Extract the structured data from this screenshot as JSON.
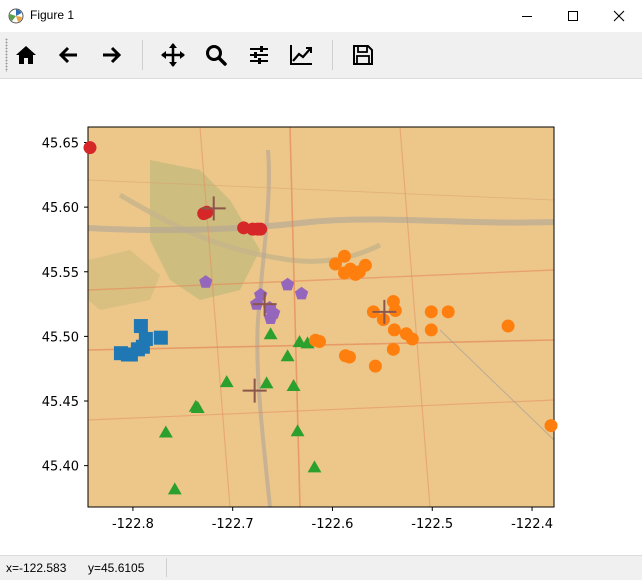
{
  "window": {
    "title": "Figure 1",
    "minimize_icon": "minimize-icon",
    "maximize_icon": "maximize-icon",
    "close_icon": "close-icon"
  },
  "toolbar": {
    "buttons": [
      {
        "name": "home-button",
        "icon": "home-icon"
      },
      {
        "name": "back-button",
        "icon": "arrow-left-icon"
      },
      {
        "name": "forward-button",
        "icon": "arrow-right-icon"
      },
      {
        "name": "pan-button",
        "icon": "move-icon"
      },
      {
        "name": "zoom-button",
        "icon": "magnifier-icon"
      },
      {
        "name": "configure-subplots-button",
        "icon": "sliders-icon"
      },
      {
        "name": "edit-axis-button",
        "icon": "line-chart-icon"
      },
      {
        "name": "save-button",
        "icon": "floppy-disk-icon"
      }
    ]
  },
  "status": {
    "x_readout": "x=-122.583",
    "y_readout": "y=45.6105"
  },
  "chart_data": {
    "type": "scatter",
    "title": "",
    "xlabel": "",
    "ylabel": "",
    "xlim": [
      -122.845,
      -122.378
    ],
    "ylim": [
      45.368,
      45.662
    ],
    "x_ticks": [
      "-122.8",
      "-122.7",
      "-122.6",
      "-122.5",
      "-122.4"
    ],
    "x_tick_values": [
      -122.8,
      -122.7,
      -122.6,
      -122.5,
      -122.4
    ],
    "y_ticks": [
      "45.40",
      "45.45",
      "45.50",
      "45.55",
      "45.60",
      "45.65"
    ],
    "y_tick_values": [
      45.4,
      45.45,
      45.5,
      45.55,
      45.6,
      45.65
    ],
    "background": "basemap street map of Portland, Oregon",
    "series": [
      {
        "marker": "circle",
        "color": "#d62728",
        "points": [
          [
            -122.843,
            45.646
          ],
          [
            -122.729,
            45.595
          ],
          [
            -122.726,
            45.596
          ],
          [
            -122.689,
            45.584
          ],
          [
            -122.68,
            45.583
          ],
          [
            -122.675,
            45.583
          ],
          [
            -122.672,
            45.583
          ]
        ]
      },
      {
        "marker": "square",
        "color": "#1f77b4",
        "points": [
          [
            -122.792,
            45.508
          ],
          [
            -122.787,
            45.498
          ],
          [
            -122.772,
            45.499
          ],
          [
            -122.795,
            45.49
          ],
          [
            -122.79,
            45.492
          ],
          [
            -122.805,
            45.486
          ],
          [
            -122.812,
            45.487
          ],
          [
            -122.802,
            45.486
          ]
        ]
      },
      {
        "marker": "triangle",
        "color": "#2ca02c",
        "points": [
          [
            -122.662,
            45.502
          ],
          [
            -122.633,
            45.496
          ],
          [
            -122.625,
            45.495
          ],
          [
            -122.645,
            45.485
          ],
          [
            -122.706,
            45.465
          ],
          [
            -122.666,
            45.464
          ],
          [
            -122.639,
            45.462
          ],
          [
            -122.737,
            45.446
          ],
          [
            -122.735,
            45.445
          ],
          [
            -122.767,
            45.426
          ],
          [
            -122.635,
            45.427
          ],
          [
            -122.618,
            45.399
          ],
          [
            -122.758,
            45.382
          ]
        ]
      },
      {
        "marker": "pentagon",
        "color": "#9467bd",
        "points": [
          [
            -122.727,
            45.542
          ],
          [
            -122.672,
            45.532
          ],
          [
            -122.645,
            45.54
          ],
          [
            -122.631,
            45.533
          ],
          [
            -122.676,
            45.525
          ],
          [
            -122.663,
            45.522
          ],
          [
            -122.659,
            45.518
          ],
          [
            -122.662,
            45.514
          ]
        ]
      },
      {
        "marker": "circle",
        "color": "#ff7f0e",
        "points": [
          [
            -122.588,
            45.562
          ],
          [
            -122.597,
            45.556
          ],
          [
            -122.567,
            45.555
          ],
          [
            -122.573,
            45.55
          ],
          [
            -122.582,
            45.552
          ],
          [
            -122.588,
            45.549
          ],
          [
            -122.577,
            45.548
          ],
          [
            -122.539,
            45.527
          ],
          [
            -122.537,
            45.52
          ],
          [
            -122.559,
            45.519
          ],
          [
            -122.549,
            45.513
          ],
          [
            -122.501,
            45.519
          ],
          [
            -122.484,
            45.519
          ],
          [
            -122.424,
            45.508
          ],
          [
            -122.538,
            45.505
          ],
          [
            -122.501,
            45.505
          ],
          [
            -122.617,
            45.497
          ],
          [
            -122.526,
            45.502
          ],
          [
            -122.52,
            45.498
          ],
          [
            -122.613,
            45.496
          ],
          [
            -122.539,
            45.49
          ],
          [
            -122.587,
            45.485
          ],
          [
            -122.583,
            45.484
          ],
          [
            -122.557,
            45.477
          ],
          [
            -122.381,
            45.431
          ]
        ]
      },
      {
        "marker": "plus",
        "color": "#8c564b",
        "points": [
          [
            -122.719,
            45.599
          ],
          [
            -122.668,
            45.525
          ],
          [
            -122.548,
            45.519
          ],
          [
            -122.678,
            45.458
          ]
        ]
      }
    ]
  }
}
